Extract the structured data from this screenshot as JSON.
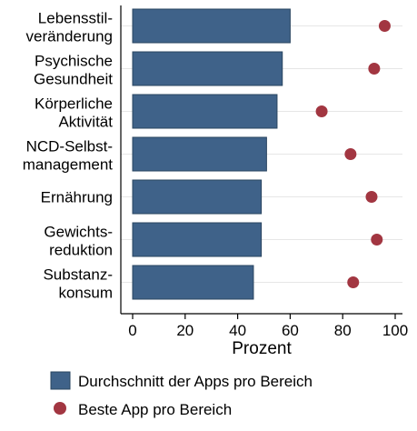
{
  "chart_data": {
    "type": "bar",
    "orientation": "horizontal",
    "categories": [
      [
        "Lebensstil-",
        "veränderung"
      ],
      [
        "Psychische",
        "Gesundheit"
      ],
      [
        "Körperliche",
        "Aktivität"
      ],
      [
        "NCD-Selbst-",
        "management"
      ],
      [
        "Ernährung"
      ],
      [
        "Gewichts-",
        "reduktion"
      ],
      [
        "Substanz-",
        "konsum"
      ]
    ],
    "series": [
      {
        "name": "Durchschnitt der Apps pro Bereich",
        "type": "bar",
        "color": "#3f6289",
        "values": [
          60,
          57,
          55,
          51,
          49,
          49,
          46
        ]
      },
      {
        "name": "Beste App pro Bereich",
        "type": "scatter",
        "color": "#a23641",
        "values": [
          96,
          92,
          72,
          83,
          91,
          93,
          84
        ]
      }
    ],
    "xlabel": "Prozent",
    "xlim": [
      0,
      100
    ],
    "xticks": [
      "0",
      "20",
      "40",
      "60",
      "80",
      "100"
    ],
    "grid": true,
    "legend_position": "bottom"
  }
}
